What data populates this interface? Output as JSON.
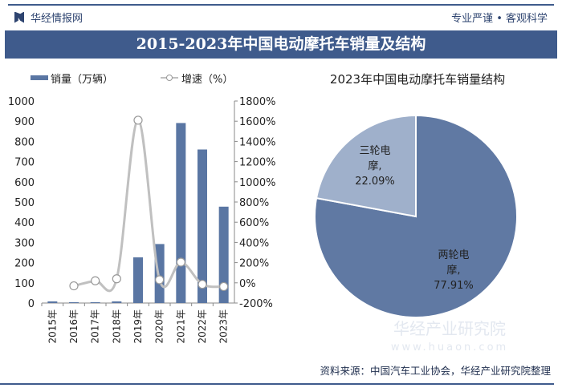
{
  "header": {
    "brand": "华经情报网",
    "slogan": "专业严谨 • 客观科学",
    "title": "2015-2023年中国电动摩托车销量及结构"
  },
  "footer": {
    "source": "资料来源：中国汽车工业协会，华经产业研究院整理"
  },
  "watermark": {
    "name": "华经产业研究院",
    "url": "www.huaon.com"
  },
  "colors": {
    "bar": "#5a76a3",
    "line": "#c0c0c0",
    "pie_main": "#6079a3",
    "pie_minor": "#9fb0cb",
    "banner": "#3f5b8c"
  },
  "chart_data": [
    {
      "type": "bar+line",
      "categories": [
        "2015年",
        "2016年",
        "2017年",
        "2018年",
        "2019年",
        "2020年",
        "2021年",
        "2022年",
        "2023年"
      ],
      "series": [
        {
          "name": "销量（万辆）",
          "type": "bar",
          "axis": "left",
          "values": [
            8,
            4,
            4,
            8,
            226,
            292,
            891,
            760,
            477
          ]
        },
        {
          "name": "增速（%）",
          "type": "line",
          "axis": "right",
          "values": [
            null,
            -30,
            20,
            40,
            1610,
            30,
            205,
            -15,
            -37
          ]
        }
      ],
      "yleft": {
        "ticks": [
          "0",
          "100",
          "200",
          "300",
          "400",
          "500",
          "600",
          "700",
          "800",
          "900",
          "1000"
        ],
        "range": [
          0,
          1000
        ]
      },
      "yright": {
        "ticks": [
          "-200%",
          "0%",
          "200%",
          "400%",
          "600%",
          "800%",
          "1000%",
          "1200%",
          "1400%",
          "1600%",
          "1800%"
        ],
        "range": [
          -200,
          1800
        ]
      },
      "legend": "top"
    },
    {
      "type": "pie",
      "title": "2023年中国电动摩托车销量结构",
      "slices": [
        {
          "label": "两轮电摩,",
          "value": 77.91,
          "text": "77.91%"
        },
        {
          "label": "三轮电摩,",
          "value": 22.09,
          "text": "22.09%"
        }
      ]
    }
  ]
}
